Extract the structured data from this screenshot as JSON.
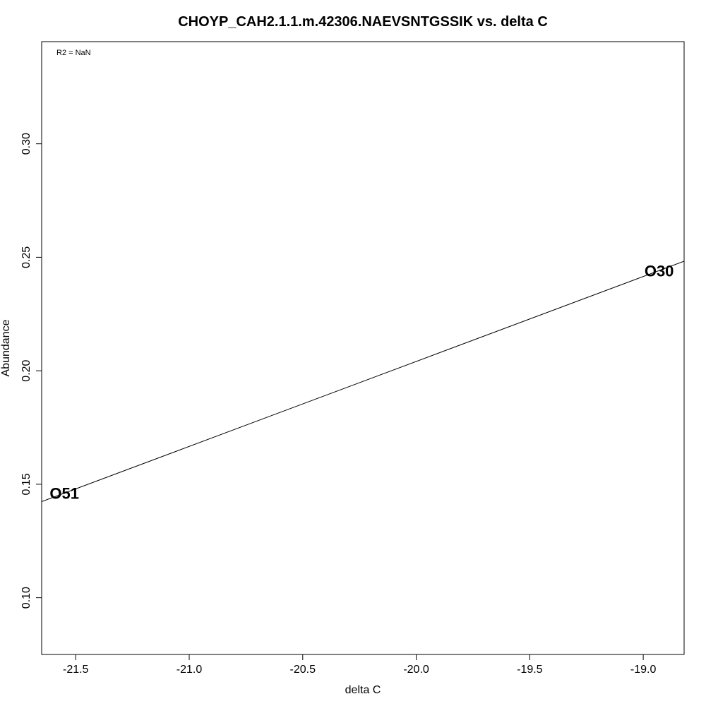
{
  "chart_data": {
    "type": "scatter",
    "title": "CHOYP_CAH2.1.1.m.42306.NAEVSNTGSSIK vs. delta C",
    "xlabel": "delta C",
    "ylabel": "Abundance",
    "annotation": "R2 = NaN",
    "xlim": [
      -21.65,
      -18.82
    ],
    "ylim": [
      0.075,
      0.345
    ],
    "x_ticks": [
      -21.5,
      -21.0,
      -20.5,
      -20.0,
      -19.5,
      -19.0
    ],
    "x_tick_labels": [
      "-21.5",
      "-21.0",
      "-20.5",
      "-20.0",
      "-19.5",
      "-19.0"
    ],
    "y_ticks": [
      0.1,
      0.15,
      0.2,
      0.25,
      0.3
    ],
    "y_tick_labels": [
      "0.10",
      "0.15",
      "0.20",
      "0.25",
      "0.30"
    ],
    "points": [
      {
        "label": "O51",
        "x": -21.55,
        "y": 0.146
      },
      {
        "label": "O30",
        "x": -18.93,
        "y": 0.244
      }
    ],
    "fit_line": {
      "intercept": 0.9527,
      "slope": 0.03743
    },
    "grid": false,
    "legend": "none"
  }
}
